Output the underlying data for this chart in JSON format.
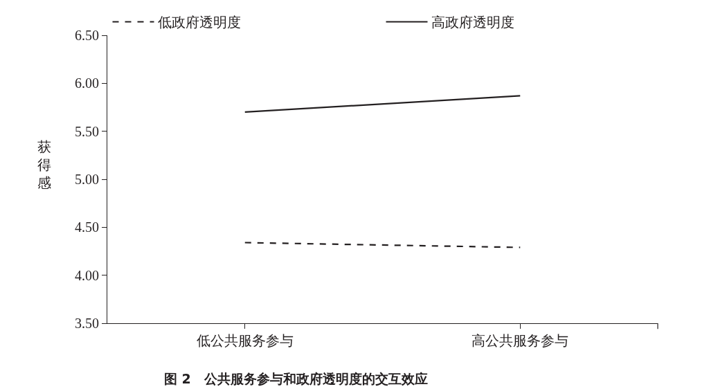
{
  "chart_data": {
    "type": "line",
    "title": "图 2　公共服务参与和政府透明度的交互效应",
    "ylabel": "获得感",
    "categories": [
      "低公共服务参与",
      "高公共服务参与"
    ],
    "series": [
      {
        "name": "低政府透明度",
        "color": "#231f20",
        "values": [
          4.34,
          4.29
        ],
        "line_style": "dashed"
      },
      {
        "name": "高政府透明度",
        "color": "#231f20",
        "values": [
          5.7,
          5.87
        ],
        "line_style": "solid"
      }
    ],
    "ylim": [
      3.5,
      6.5
    ],
    "yticks": [
      {
        "value": 3.5,
        "label": "3.50"
      },
      {
        "value": 4,
        "label": "4.00"
      },
      {
        "value": 4.5,
        "label": "4.50"
      },
      {
        "value": 5,
        "label": "5.00"
      },
      {
        "value": 5.5,
        "label": "5.50"
      },
      {
        "value": 6,
        "label": "6.00"
      },
      {
        "value": 6.5,
        "label": "6.50"
      }
    ],
    "grid": false,
    "legend": "top",
    "marker": "none"
  }
}
